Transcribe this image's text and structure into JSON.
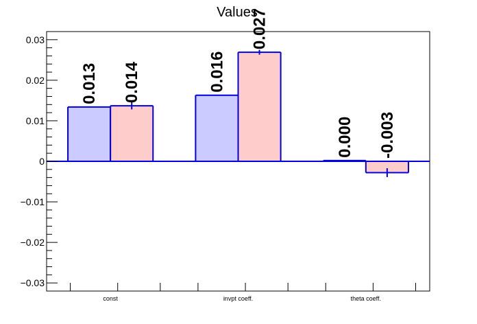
{
  "chart_data": {
    "type": "bar",
    "title": "Values",
    "xlabel": "",
    "ylabel": "",
    "categories": [
      "const",
      "invpt coeff.",
      "theta coeff."
    ],
    "ylim": [
      -0.032,
      0.032
    ],
    "yticks": [
      -0.03,
      -0.02,
      -0.01,
      0,
      0.01,
      0.02,
      0.03
    ],
    "ytick_labels": [
      "−0.03",
      "−0.02",
      "−0.01",
      "0",
      "0.01",
      "0.02",
      "0.03"
    ],
    "grid": false,
    "series": [
      {
        "color": "#cbcbff",
        "values": [
          0.0134,
          0.0163,
          0.0002
        ],
        "errors": [
          0.0,
          0.0,
          0.0
        ],
        "labels": [
          "0.013",
          "0.016",
          "0.000"
        ]
      },
      {
        "color": "#ffcccc",
        "values": [
          0.0137,
          0.0269,
          -0.0028
        ],
        "errors": [
          0.0009,
          0.0006,
          0.0011
        ],
        "labels": [
          "0.014",
          "0.027",
          "-0.003"
        ]
      }
    ],
    "edge_color": "#0000dd"
  }
}
